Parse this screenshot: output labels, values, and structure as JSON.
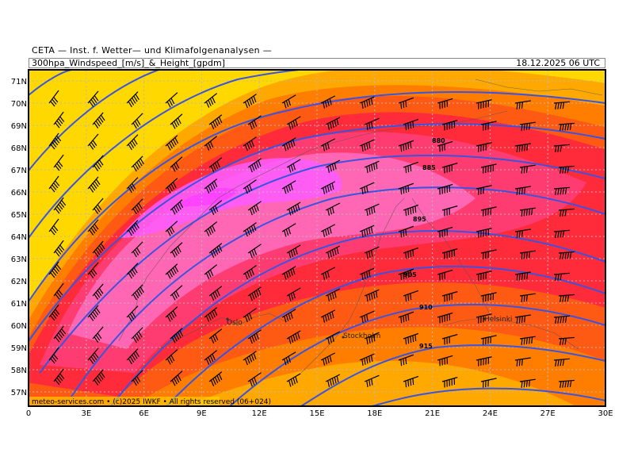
{
  "header": {
    "institute": "CETA — Inst. f. Wetter— und Klimafolgenanalysen —",
    "title": "300hpa_Windspeed_[m/s]_&_Height_[gpdm]",
    "valid_time": "18.12.2025 06 UTC"
  },
  "footer": {
    "credit": "meteo-services.com • (c)2025 IWKF • All rights reserved (06+024)"
  },
  "axes": {
    "lon_labels": [
      "0",
      "3E",
      "6E",
      "9E",
      "12E",
      "15E",
      "18E",
      "21E",
      "24E",
      "27E",
      "30E"
    ],
    "lat_labels": [
      "71N",
      "70N",
      "69N",
      "68N",
      "67N",
      "66N",
      "65N",
      "64N",
      "63N",
      "62N",
      "61N",
      "60N",
      "59N",
      "58N",
      "57N"
    ]
  },
  "contour_labels": [
    "880",
    "885",
    "895",
    "905",
    "910",
    "915"
  ],
  "cities": [
    "Oslo",
    "Stockholm",
    "Helsinki"
  ],
  "colors": {
    "background_yellow": "#ffd800",
    "orange_light": "#ffa800",
    "orange": "#ff7e00",
    "orange_red": "#ff5a14",
    "red": "#ff2a3a",
    "deep_pink": "#ff3c72",
    "pink": "#ff66b4",
    "magenta": "#ff5aff",
    "contour_blue": "#3a54e0",
    "grid": "#b8b8b8"
  }
}
